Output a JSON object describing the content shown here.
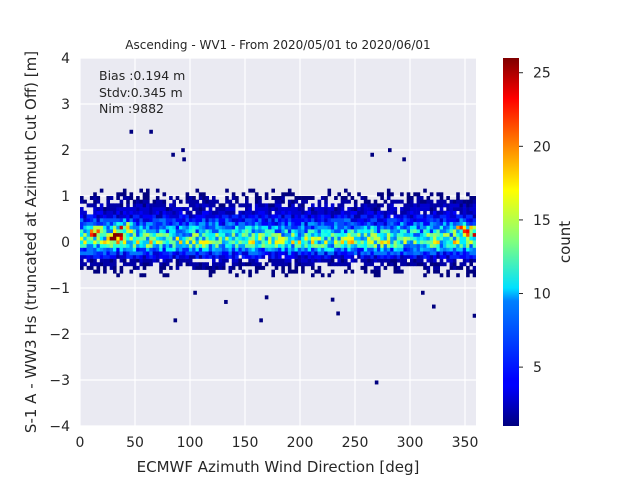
{
  "chart_data": {
    "type": "heatmap",
    "title": "Ascending - WV1 - From 2020/05/01 to 2020/06/01",
    "xlabel": "ECMWF Azimuth Wind Direction [deg]",
    "ylabel": "S-1 A - WW3 Hs (truncated at Azimuth Cut Off) [m]",
    "xlim": [
      0,
      360
    ],
    "ylim": [
      -4,
      4
    ],
    "xticks": [
      0,
      50,
      100,
      150,
      200,
      250,
      300,
      350
    ],
    "yticks": [
      -4,
      -3,
      -2,
      -1,
      0,
      1,
      2,
      3,
      4
    ],
    "grid": true,
    "bin_width_deg": 3,
    "bin_height_m": 0.08,
    "annotations": [
      "Bias :0.194 m",
      "Stdv:0.345 m",
      "Nim :9882"
    ],
    "colorbar": {
      "label": "count",
      "min": 1,
      "max": 26,
      "ticks": [
        5,
        10,
        15,
        20,
        25
      ],
      "colormap": "jet"
    },
    "density_profile": [
      {
        "y": 0.0,
        "count": 13
      },
      {
        "y": 0.2,
        "count": 10
      },
      {
        "y": 0.4,
        "count": 6
      },
      {
        "y": 0.6,
        "count": 3
      },
      {
        "y": 0.8,
        "count": 2
      },
      {
        "y": 1.0,
        "count": 1
      },
      {
        "y": -0.2,
        "count": 6
      },
      {
        "y": -0.4,
        "count": 2
      },
      {
        "y": -0.6,
        "count": 1
      }
    ],
    "hotspots": [
      {
        "x": 15,
        "y": 0.2,
        "count": 21
      },
      {
        "x": 35,
        "y": 0.1,
        "count": 25
      },
      {
        "x": 40,
        "y": 0.3,
        "count": 18
      },
      {
        "x": 345,
        "y": 0.3,
        "count": 16
      },
      {
        "x": 355,
        "y": 0.2,
        "count": 20
      }
    ],
    "outliers": [
      {
        "x": 45,
        "y": 2.4
      },
      {
        "x": 63,
        "y": 2.4
      },
      {
        "x": 92,
        "y": 2.0
      },
      {
        "x": 93,
        "y": 1.8
      },
      {
        "x": 83,
        "y": 1.9
      },
      {
        "x": 264,
        "y": 1.9
      },
      {
        "x": 280,
        "y": 2.0
      },
      {
        "x": 293,
        "y": 1.8
      },
      {
        "x": 268,
        "y": -3.05
      },
      {
        "x": 85,
        "y": -1.7
      },
      {
        "x": 163,
        "y": -1.7
      },
      {
        "x": 357,
        "y": -1.6
      },
      {
        "x": 320,
        "y": -1.4
      },
      {
        "x": 310,
        "y": -1.1
      },
      {
        "x": 233,
        "y": -1.55
      },
      {
        "x": 168,
        "y": -1.2
      },
      {
        "x": 228,
        "y": -1.25
      },
      {
        "x": 131,
        "y": -1.3
      },
      {
        "x": 103,
        "y": -1.1
      }
    ]
  }
}
